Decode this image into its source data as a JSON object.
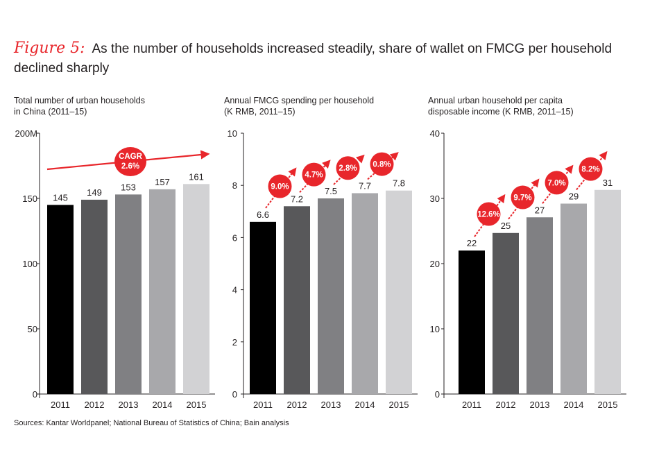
{
  "header": {
    "figure_label": "Figure 5:",
    "title": "As the number of households increased steadily, share of wallet on FMCG per household declined sharply"
  },
  "source": "Sources: Kantar Worldpanel; National Bureau of Statistics of China; Bain analysis",
  "colors": {
    "accent": "#e8262b",
    "bars": [
      "#000000",
      "#58585a",
      "#808083",
      "#a8a8ab",
      "#d2d2d4"
    ],
    "axis": "#231f20"
  },
  "chart_data": [
    {
      "type": "bar",
      "title_lines": [
        "Total number of urban households",
        "in China (2011–15)"
      ],
      "categories": [
        "2011",
        "2012",
        "2013",
        "2014",
        "2015"
      ],
      "values": [
        145,
        149,
        153,
        157,
        161
      ],
      "value_labels": [
        "145",
        "149",
        "153",
        "157",
        "161"
      ],
      "ylim": [
        0,
        200
      ],
      "ticks": [
        0,
        50,
        100,
        150,
        200
      ],
      "tick_labels": [
        "0",
        "50",
        "100",
        "150",
        "200M"
      ],
      "annotation": {
        "kind": "cagr",
        "lines": [
          "CAGR",
          "2.6%"
        ]
      }
    },
    {
      "type": "bar",
      "title_lines": [
        "Annual FMCG spending per household",
        "(K RMB, 2011–15)"
      ],
      "categories": [
        "2011",
        "2012",
        "2013",
        "2014",
        "2015"
      ],
      "values": [
        6.6,
        7.2,
        7.5,
        7.7,
        7.8
      ],
      "value_labels": [
        "6.6",
        "7.2",
        "7.5",
        "7.7",
        "7.8"
      ],
      "ylim": [
        0,
        10
      ],
      "ticks": [
        0,
        2,
        4,
        6,
        8,
        10
      ],
      "tick_labels": [
        "0",
        "2",
        "4",
        "6",
        "8",
        "10"
      ],
      "annotation": {
        "kind": "growth",
        "labels": [
          "9.0%",
          "4.7%",
          "2.8%",
          "0.8%"
        ]
      }
    },
    {
      "type": "bar",
      "title_lines": [
        "Annual urban household per capita",
        "disposable income (K RMB, 2011–15)"
      ],
      "categories": [
        "2011",
        "2012",
        "2013",
        "2014",
        "2015"
      ],
      "values": [
        22,
        24.7,
        27.1,
        29.2,
        31.3
      ],
      "value_labels": [
        "22",
        "25",
        "27",
        "29",
        "31"
      ],
      "ylim": [
        0,
        40
      ],
      "ticks": [
        0,
        10,
        20,
        30,
        40
      ],
      "tick_labels": [
        "0",
        "10",
        "20",
        "30",
        "40"
      ],
      "annotation": {
        "kind": "growth",
        "labels": [
          "12.6%",
          "9.7%",
          "7.0%",
          "8.2%"
        ]
      }
    }
  ]
}
